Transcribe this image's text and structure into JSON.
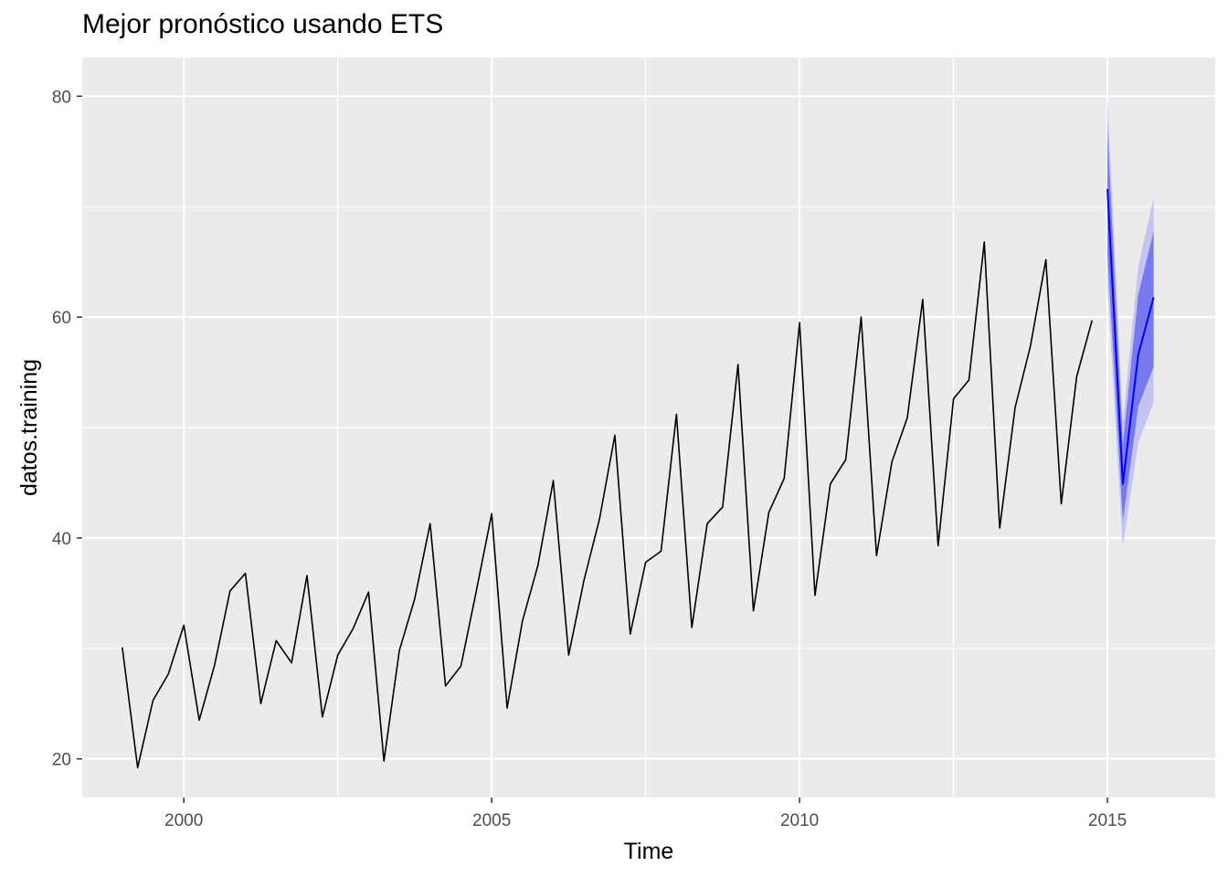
{
  "chart_data": {
    "type": "line",
    "title": "Mejor pronóstico usando ETS",
    "xlabel": "Time",
    "ylabel": "datos.training",
    "xlim": [
      1998.35,
      2016.75
    ],
    "ylim": [
      16.5,
      83.5
    ],
    "x_ticks": [
      2000,
      2005,
      2010,
      2015
    ],
    "x_tick_labels": [
      "2000",
      "2005",
      "2010",
      "2015"
    ],
    "y_ticks": [
      20,
      40,
      60,
      80
    ],
    "y_tick_labels": [
      "20",
      "40",
      "60",
      "80"
    ],
    "grid": true,
    "series": [
      {
        "role": "observed",
        "x": [
          1999.0,
          1999.25,
          1999.5,
          1999.75,
          2000.0,
          2000.25,
          2000.5,
          2000.75,
          2001.0,
          2001.25,
          2001.5,
          2001.75,
          2002.0,
          2002.25,
          2002.5,
          2002.75,
          2003.0,
          2003.25,
          2003.5,
          2003.75,
          2004.0,
          2004.25,
          2004.5,
          2004.75,
          2005.0,
          2005.25,
          2005.5,
          2005.75,
          2006.0,
          2006.25,
          2006.5,
          2006.75,
          2007.0,
          2007.25,
          2007.5,
          2007.75,
          2008.0,
          2008.25,
          2008.5,
          2008.75,
          2009.0,
          2009.25,
          2009.5,
          2009.75,
          2010.0,
          2010.25,
          2010.5,
          2010.75,
          2011.0,
          2011.25,
          2011.5,
          2011.75,
          2012.0,
          2012.25,
          2012.5,
          2012.75,
          2013.0,
          2013.25,
          2013.5,
          2013.75,
          2014.0,
          2014.25,
          2014.5,
          2014.75
        ],
        "values": [
          30.1,
          19.2,
          25.3,
          27.7,
          32.1,
          23.5,
          28.5,
          35.2,
          36.8,
          25.0,
          30.7,
          28.7,
          36.6,
          23.8,
          29.4,
          31.8,
          35.1,
          19.8,
          29.8,
          34.5,
          41.3,
          26.6,
          28.4,
          35.2,
          42.2,
          24.6,
          32.5,
          37.5,
          45.2,
          29.4,
          36.2,
          41.7,
          49.3,
          31.3,
          37.8,
          38.8,
          51.2,
          31.9,
          41.3,
          42.8,
          55.7,
          33.4,
          42.3,
          45.4,
          59.5,
          34.8,
          44.9,
          47.1,
          60.0,
          38.4,
          46.9,
          50.9,
          61.6,
          39.3,
          52.6,
          54.3,
          66.8,
          40.9,
          51.8,
          57.4,
          65.2,
          43.1,
          54.6,
          59.7
        ]
      },
      {
        "role": "forecast",
        "color": "#0000FF",
        "x": [
          2015.0,
          2015.25,
          2015.5,
          2015.75
        ],
        "values": [
          71.6,
          44.9,
          56.6,
          61.8
        ],
        "lo80": [
          65.7,
          41.5,
          51.9,
          55.5
        ],
        "hi80": [
          77.0,
          48.4,
          62.0,
          67.8
        ],
        "lo95": [
          62.7,
          39.2,
          48.6,
          52.3
        ],
        "hi95": [
          80.0,
          50.5,
          64.6,
          70.8
        ]
      }
    ],
    "colors": {
      "panel_background": "#EBEBEB",
      "grid_line": "#FFFFFF",
      "observed_line": "#000000",
      "forecast_line": "#0000FF",
      "band_80": "#7878F0",
      "band_95": "#C4C4F4"
    }
  }
}
